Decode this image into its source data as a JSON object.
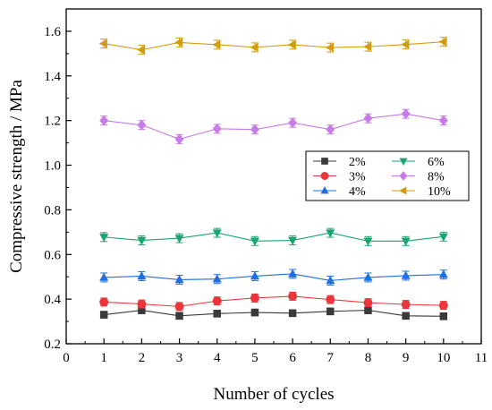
{
  "chart_data": {
    "type": "line",
    "title": "",
    "xlabel": "Number of cycles",
    "ylabel": "Compressive strength / MPa",
    "xlim": [
      0,
      11
    ],
    "ylim": [
      0.2,
      1.7
    ],
    "xticks": [
      "0",
      "1",
      "2",
      "3",
      "4",
      "5",
      "6",
      "7",
      "8",
      "9",
      "10",
      "11"
    ],
    "yticks": [
      "0.2",
      "0.4",
      "0.6",
      "0.8",
      "1.0",
      "1.2",
      "1.4",
      "1.6"
    ],
    "x": [
      1,
      2,
      3,
      4,
      5,
      6,
      7,
      8,
      9,
      10
    ],
    "legend_position": "center-right",
    "grid": false,
    "series": [
      {
        "name": "2%",
        "color": "#3a3a3a",
        "marker": "square",
        "values": [
          0.33,
          0.35,
          0.325,
          0.335,
          0.34,
          0.337,
          0.345,
          0.35,
          0.325,
          0.323
        ],
        "error": 0.015
      },
      {
        "name": "3%",
        "color": "#e8363a",
        "marker": "circle",
        "values": [
          0.387,
          0.378,
          0.367,
          0.392,
          0.405,
          0.413,
          0.398,
          0.384,
          0.376,
          0.372
        ],
        "error": 0.018
      },
      {
        "name": "4%",
        "color": "#1f6fe0",
        "marker": "triangle-up",
        "values": [
          0.497,
          0.503,
          0.487,
          0.49,
          0.503,
          0.513,
          0.483,
          0.497,
          0.505,
          0.51
        ],
        "error": 0.02
      },
      {
        "name": "6%",
        "color": "#1aa571",
        "marker": "triangle-down",
        "values": [
          0.678,
          0.663,
          0.673,
          0.697,
          0.66,
          0.663,
          0.697,
          0.66,
          0.66,
          0.68
        ],
        "error": 0.02
      },
      {
        "name": "8%",
        "color": "#c87ae8",
        "marker": "diamond",
        "values": [
          1.2,
          1.18,
          1.117,
          1.163,
          1.16,
          1.19,
          1.16,
          1.21,
          1.23,
          1.2
        ],
        "error": 0.02
      },
      {
        "name": "10%",
        "color": "#d39b12",
        "marker": "triangle-left",
        "values": [
          1.545,
          1.517,
          1.55,
          1.54,
          1.528,
          1.54,
          1.527,
          1.531,
          1.541,
          1.553
        ],
        "error": 0.02
      }
    ]
  }
}
